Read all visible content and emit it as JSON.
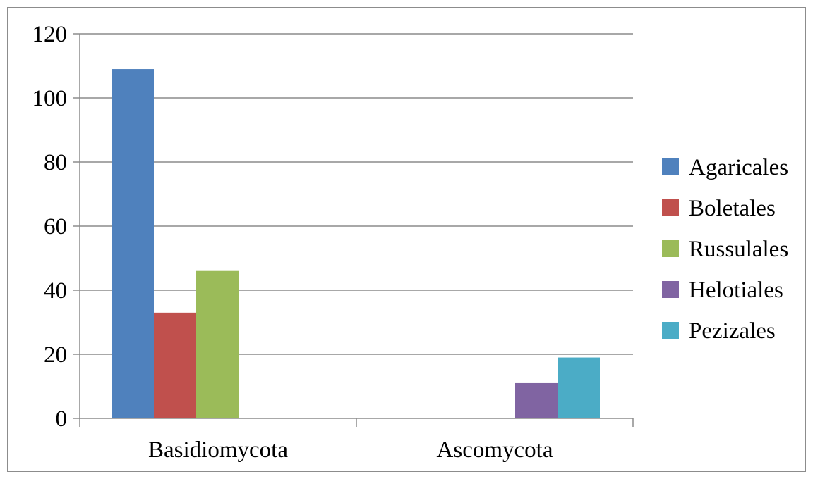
{
  "chart_data": {
    "type": "bar",
    "title": "",
    "xlabel": "",
    "ylabel": "",
    "categories": [
      "Basidiomycota",
      "Ascomycota"
    ],
    "series": [
      {
        "name": "Agaricales",
        "color": "#4F81BD",
        "values": [
          109,
          0
        ]
      },
      {
        "name": "Boletales",
        "color": "#C0504D",
        "values": [
          33,
          0
        ]
      },
      {
        "name": "Russulales",
        "color": "#9BBB59",
        "values": [
          46,
          0
        ]
      },
      {
        "name": "Helotiales",
        "color": "#8064A2",
        "values": [
          0,
          11
        ]
      },
      {
        "name": "Pezizales",
        "color": "#4BACC6",
        "values": [
          0,
          19
        ]
      }
    ],
    "ylim": [
      0,
      120
    ],
    "yticks": [
      0,
      20,
      40,
      60,
      80,
      100,
      120
    ],
    "grid": true,
    "legend_position": "right"
  }
}
